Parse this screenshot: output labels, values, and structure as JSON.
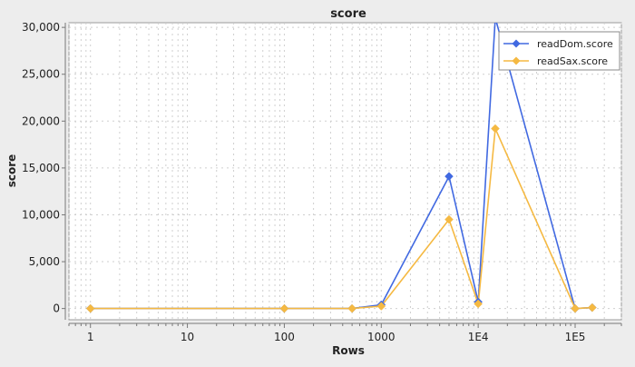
{
  "chart_data": {
    "type": "line",
    "title": "score",
    "xlabel": "Rows",
    "ylabel": "score",
    "x_scale": "log",
    "xlim": [
      0.6,
      300000
    ],
    "ylim": [
      -1200,
      30500
    ],
    "x_ticks": [
      {
        "value": 1,
        "label": "1"
      },
      {
        "value": 10,
        "label": "10"
      },
      {
        "value": 100,
        "label": "100"
      },
      {
        "value": 1000,
        "label": "1000"
      },
      {
        "value": 10000,
        "label": "1E4"
      },
      {
        "value": 100000,
        "label": "1E5"
      }
    ],
    "y_ticks": [
      {
        "value": 0,
        "label": "0"
      },
      {
        "value": 5000,
        "label": "5,000"
      },
      {
        "value": 10000,
        "label": "10,000"
      },
      {
        "value": 15000,
        "label": "15,000"
      },
      {
        "value": 20000,
        "label": "20,000"
      },
      {
        "value": 25000,
        "label": "25,000"
      },
      {
        "value": 30000,
        "label": "30,000"
      }
    ],
    "grid": true,
    "legend_position": "top-right",
    "series": [
      {
        "name": "readDom.score",
        "color": "#4169e1",
        "points": [
          {
            "x": 1,
            "y": 0
          },
          {
            "x": 100,
            "y": 0
          },
          {
            "x": 500,
            "y": 0
          },
          {
            "x": 1000,
            "y": 400
          },
          {
            "x": 5000,
            "y": 14100
          },
          {
            "x": 10000,
            "y": 700
          },
          {
            "x": 15000,
            "y": 31000
          },
          {
            "x": 100000,
            "y": 0
          },
          {
            "x": 150000,
            "y": 100
          }
        ]
      },
      {
        "name": "readSax.score",
        "color": "#f5b942",
        "points": [
          {
            "x": 1,
            "y": 0
          },
          {
            "x": 100,
            "y": 0
          },
          {
            "x": 500,
            "y": 0
          },
          {
            "x": 1000,
            "y": 250
          },
          {
            "x": 5000,
            "y": 9500
          },
          {
            "x": 10000,
            "y": 500
          },
          {
            "x": 15000,
            "y": 19200
          },
          {
            "x": 100000,
            "y": 0
          },
          {
            "x": 150000,
            "y": 100
          }
        ]
      }
    ]
  }
}
